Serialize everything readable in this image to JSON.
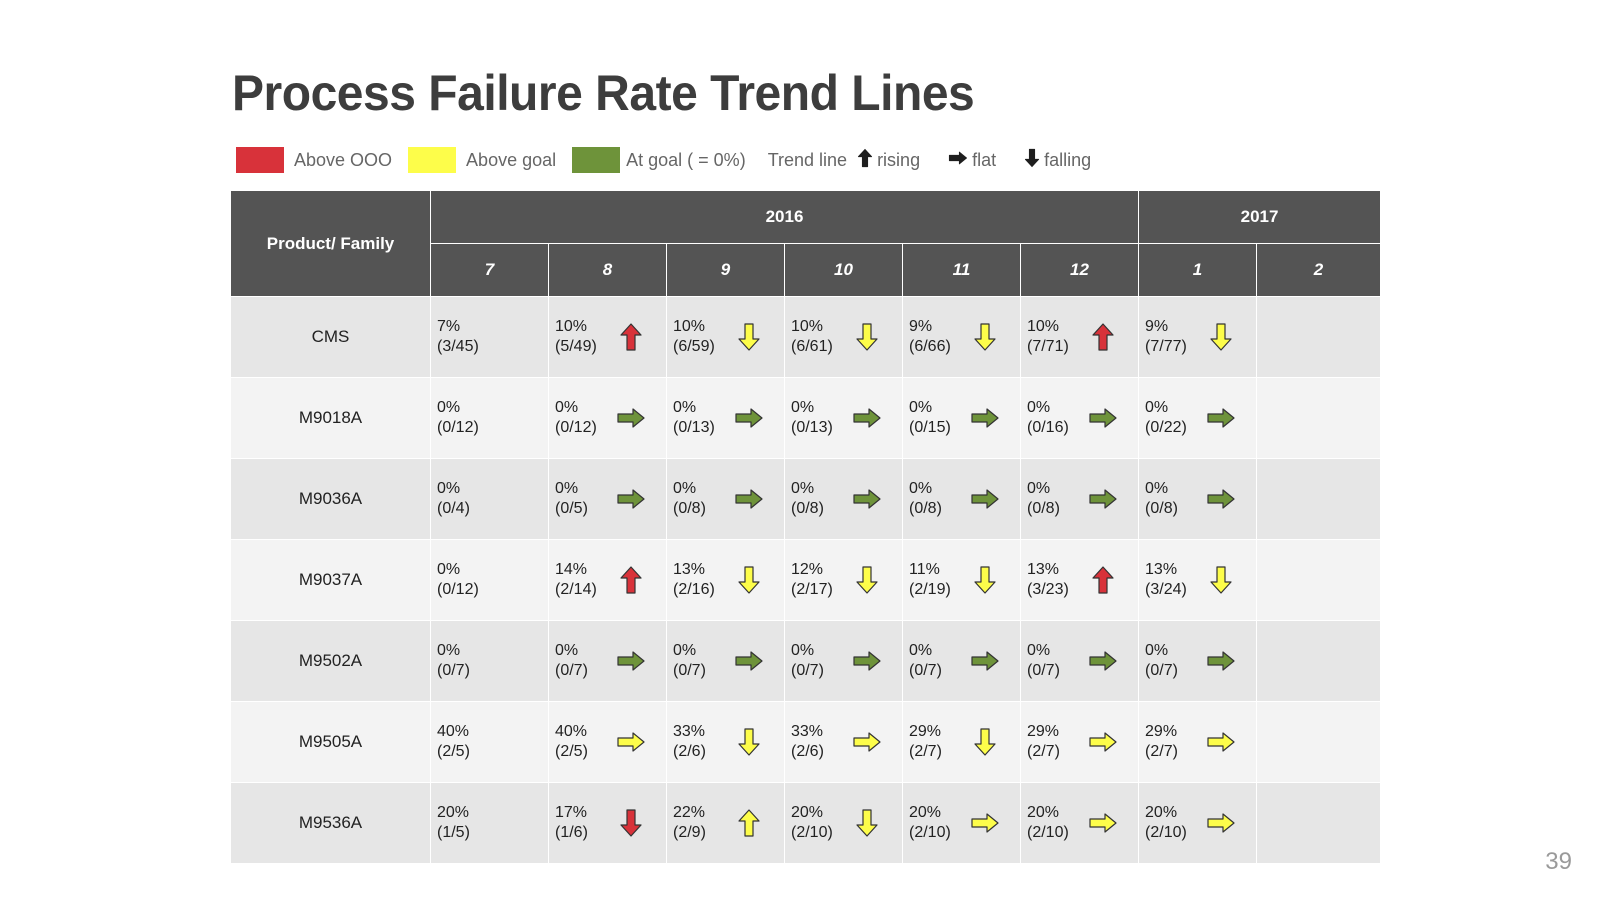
{
  "title": "Process Failure Rate Trend Lines",
  "legend": {
    "items": [
      {
        "label": "Above OOO",
        "color": "#d8323a"
      },
      {
        "label": "Above goal",
        "color": "#fdfd4a"
      },
      {
        "label": "At goal ( = 0%)",
        "color": "#6e933a"
      }
    ],
    "trend_label": "Trend line",
    "rising": "rising",
    "flat": "flat",
    "falling": "falling"
  },
  "table": {
    "product_header": "Product/ Family",
    "years": [
      {
        "label": "2016",
        "span": 6
      },
      {
        "label": "2017",
        "span": 2
      }
    ],
    "months": [
      "7",
      "8",
      "9",
      "10",
      "11",
      "12",
      "1",
      "2"
    ],
    "rows": [
      {
        "product": "CMS",
        "cells": [
          {
            "pct": "7%",
            "frac": "(3/45)"
          },
          {
            "pct": "10%",
            "frac": "(5/49)",
            "trend": "up",
            "color": "red"
          },
          {
            "pct": "10%",
            "frac": "(6/59)",
            "trend": "down",
            "color": "yellow"
          },
          {
            "pct": "10%",
            "frac": "(6/61)",
            "trend": "down",
            "color": "yellow"
          },
          {
            "pct": "9%",
            "frac": "(6/66)",
            "trend": "down",
            "color": "yellow"
          },
          {
            "pct": "10%",
            "frac": "(7/71)",
            "trend": "up",
            "color": "red"
          },
          {
            "pct": "9%",
            "frac": "(7/77)",
            "trend": "down",
            "color": "yellow"
          },
          {}
        ]
      },
      {
        "product": "M9018A",
        "cells": [
          {
            "pct": "0%",
            "frac": "(0/12)"
          },
          {
            "pct": "0%",
            "frac": "(0/12)",
            "trend": "flat",
            "color": "green"
          },
          {
            "pct": "0%",
            "frac": "(0/13)",
            "trend": "flat",
            "color": "green"
          },
          {
            "pct": "0%",
            "frac": "(0/13)",
            "trend": "flat",
            "color": "green"
          },
          {
            "pct": "0%",
            "frac": "(0/15)",
            "trend": "flat",
            "color": "green"
          },
          {
            "pct": "0%",
            "frac": "(0/16)",
            "trend": "flat",
            "color": "green"
          },
          {
            "pct": "0%",
            "frac": "(0/22)",
            "trend": "flat",
            "color": "green"
          },
          {}
        ]
      },
      {
        "product": "M9036A",
        "cells": [
          {
            "pct": "0%",
            "frac": "(0/4)"
          },
          {
            "pct": "0%",
            "frac": "(0/5)",
            "trend": "flat",
            "color": "green"
          },
          {
            "pct": "0%",
            "frac": "(0/8)",
            "trend": "flat",
            "color": "green"
          },
          {
            "pct": "0%",
            "frac": "(0/8)",
            "trend": "flat",
            "color": "green"
          },
          {
            "pct": "0%",
            "frac": "(0/8)",
            "trend": "flat",
            "color": "green"
          },
          {
            "pct": "0%",
            "frac": "(0/8)",
            "trend": "flat",
            "color": "green"
          },
          {
            "pct": "0%",
            "frac": "(0/8)",
            "trend": "flat",
            "color": "green"
          },
          {}
        ]
      },
      {
        "product": "M9037A",
        "cells": [
          {
            "pct": "0%",
            "frac": "(0/12)"
          },
          {
            "pct": "14%",
            "frac": "(2/14)",
            "trend": "up",
            "color": "red"
          },
          {
            "pct": "13%",
            "frac": "(2/16)",
            "trend": "down",
            "color": "yellow"
          },
          {
            "pct": "12%",
            "frac": "(2/17)",
            "trend": "down",
            "color": "yellow"
          },
          {
            "pct": "11%",
            "frac": "(2/19)",
            "trend": "down",
            "color": "yellow"
          },
          {
            "pct": "13%",
            "frac": "(3/23)",
            "trend": "up",
            "color": "red"
          },
          {
            "pct": "13%",
            "frac": "(3/24)",
            "trend": "down",
            "color": "yellow"
          },
          {}
        ]
      },
      {
        "product": "M9502A",
        "cells": [
          {
            "pct": "0%",
            "frac": "(0/7)"
          },
          {
            "pct": "0%",
            "frac": "(0/7)",
            "trend": "flat",
            "color": "green"
          },
          {
            "pct": "0%",
            "frac": "(0/7)",
            "trend": "flat",
            "color": "green"
          },
          {
            "pct": "0%",
            "frac": "(0/7)",
            "trend": "flat",
            "color": "green"
          },
          {
            "pct": "0%",
            "frac": "(0/7)",
            "trend": "flat",
            "color": "green"
          },
          {
            "pct": "0%",
            "frac": "(0/7)",
            "trend": "flat",
            "color": "green"
          },
          {
            "pct": "0%",
            "frac": "(0/7)",
            "trend": "flat",
            "color": "green"
          },
          {}
        ]
      },
      {
        "product": "M9505A",
        "cells": [
          {
            "pct": "40%",
            "frac": "(2/5)"
          },
          {
            "pct": "40%",
            "frac": "(2/5)",
            "trend": "flat",
            "color": "yellow"
          },
          {
            "pct": "33%",
            "frac": "(2/6)",
            "trend": "down",
            "color": "yellow"
          },
          {
            "pct": "33%",
            "frac": "(2/6)",
            "trend": "flat",
            "color": "yellow"
          },
          {
            "pct": "29%",
            "frac": "(2/7)",
            "trend": "down",
            "color": "yellow"
          },
          {
            "pct": "29%",
            "frac": "(2/7)",
            "trend": "flat",
            "color": "yellow"
          },
          {
            "pct": "29%",
            "frac": "(2/7)",
            "trend": "flat",
            "color": "yellow"
          },
          {}
        ]
      },
      {
        "product": "M9536A",
        "cells": [
          {
            "pct": "20%",
            "frac": "(1/5)"
          },
          {
            "pct": "17%",
            "frac": "(1/6)",
            "trend": "down",
            "color": "red"
          },
          {
            "pct": "22%",
            "frac": "(2/9)",
            "trend": "up",
            "color": "yellow"
          },
          {
            "pct": "20%",
            "frac": "(2/10)",
            "trend": "down",
            "color": "yellow"
          },
          {
            "pct": "20%",
            "frac": "(2/10)",
            "trend": "flat",
            "color": "yellow"
          },
          {
            "pct": "20%",
            "frac": "(2/10)",
            "trend": "flat",
            "color": "yellow"
          },
          {
            "pct": "20%",
            "frac": "(2/10)",
            "trend": "flat",
            "color": "yellow"
          },
          {}
        ]
      }
    ]
  },
  "colors": {
    "red": "#d8323a",
    "yellow": "#fdfd4a",
    "green": "#6e933a",
    "legend_arrow": "#1e1e1e"
  },
  "page_number": "39"
}
